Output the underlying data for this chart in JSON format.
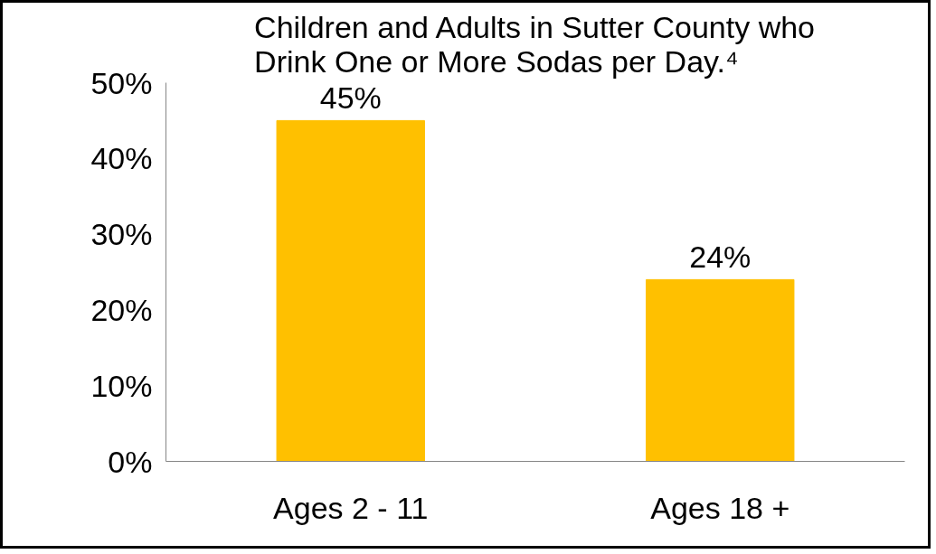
{
  "chart_data": {
    "type": "bar",
    "title": "Children and Adults in Sutter County who Drink One or More Sodas per Day.⁴",
    "categories": [
      "Ages 2 - 11",
      "Ages 18 +"
    ],
    "values": [
      45,
      24
    ],
    "color": "#ffc000",
    "value_labels": [
      "45%",
      "24%"
    ],
    "ylim": [
      0,
      50
    ],
    "yticks": [
      {
        "value": 0,
        "label": "0%"
      },
      {
        "value": 10,
        "label": "10%"
      },
      {
        "value": 20,
        "label": "20%"
      },
      {
        "value": 30,
        "label": "30%"
      },
      {
        "value": 40,
        "label": "40%"
      },
      {
        "value": 50,
        "label": "50%"
      }
    ],
    "grid": false
  }
}
